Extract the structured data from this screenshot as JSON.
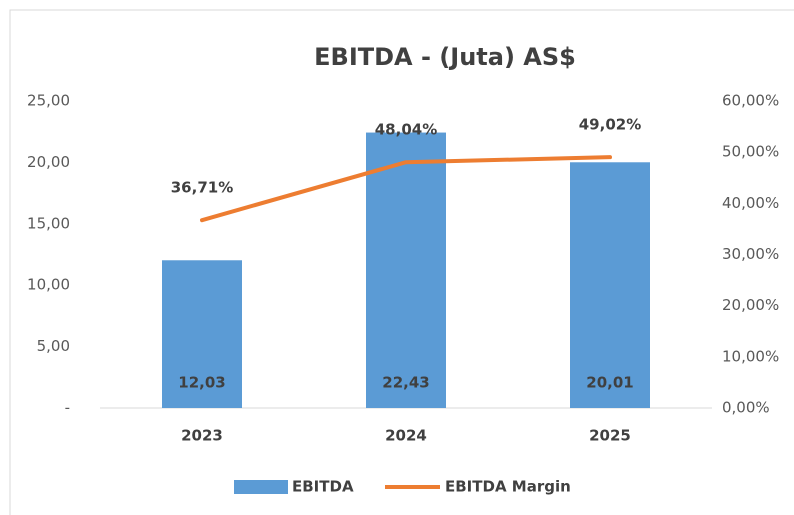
{
  "chart_data": {
    "type": "bar_line",
    "title": "EBITDA - (Juta) AS$",
    "categories": [
      "2023",
      "2024",
      "2025"
    ],
    "series": [
      {
        "name": "EBITDA",
        "type": "bar",
        "color": "#5b9bd5",
        "values": [
          12.03,
          22.43,
          20.01
        ],
        "value_labels": [
          "12,03",
          "22,43",
          "20,01"
        ]
      },
      {
        "name": "EBITDA Margin",
        "type": "line",
        "axis": "y2",
        "color": "#ed7d31",
        "values": [
          36.71,
          48.04,
          49.02
        ],
        "value_labels": [
          "36,71%",
          "48,04%",
          "49,02%"
        ]
      }
    ],
    "ylim": [
      0,
      25
    ],
    "yticks": [
      {
        "value": 0,
        "label": "-"
      },
      {
        "value": 5,
        "label": "5,00"
      },
      {
        "value": 10,
        "label": "10,00"
      },
      {
        "value": 15,
        "label": "15,00"
      },
      {
        "value": 20,
        "label": "20,00"
      },
      {
        "value": 25,
        "label": "25,00"
      }
    ],
    "y2lim": [
      0,
      60
    ],
    "y2ticks": [
      {
        "value": 0,
        "label": "0,00%"
      },
      {
        "value": 10,
        "label": "10,00%"
      },
      {
        "value": 20,
        "label": "20,00%"
      },
      {
        "value": 30,
        "label": "30,00%"
      },
      {
        "value": 40,
        "label": "40,00%"
      },
      {
        "value": 50,
        "label": "50,00%"
      },
      {
        "value": 60,
        "label": "60,00%"
      }
    ],
    "grid": false,
    "legend": "bottom"
  }
}
